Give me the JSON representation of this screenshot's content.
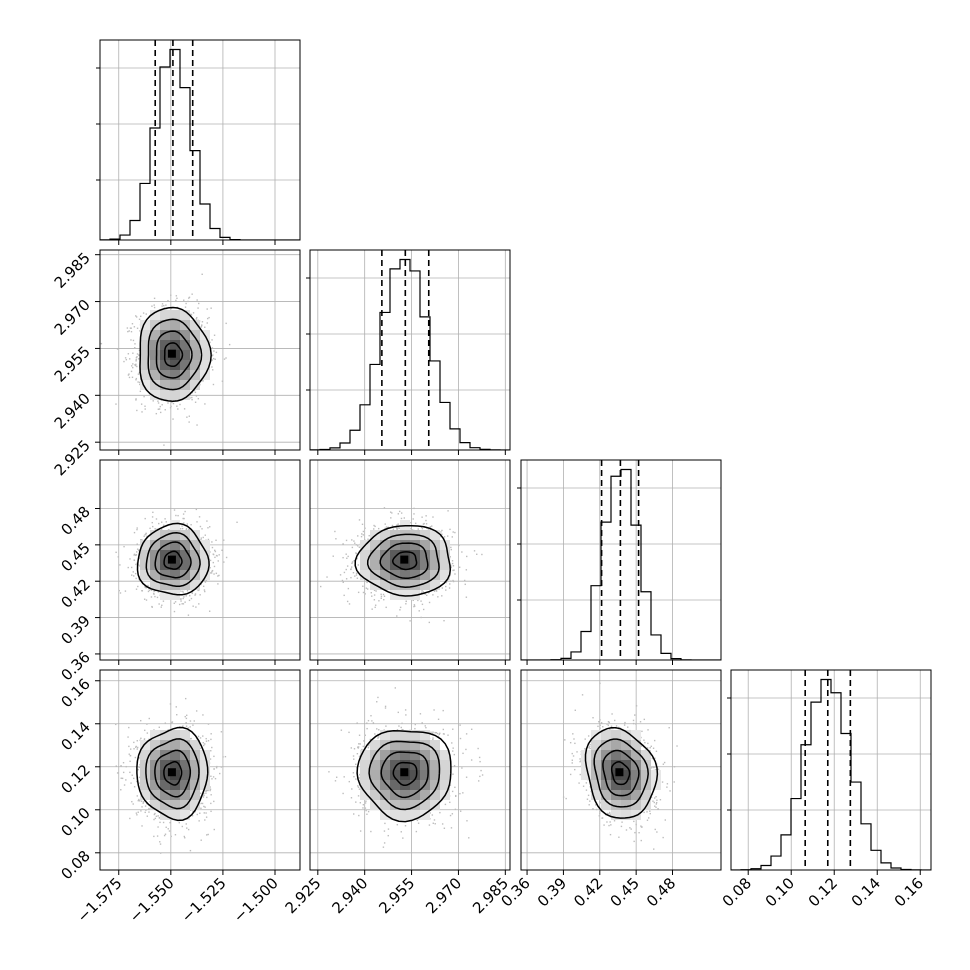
{
  "chart_data": {
    "type": "corner",
    "parameters": [
      {
        "range": [
          -1.584,
          -1.488
        ],
        "ticks": [
          -1.575,
          -1.55,
          -1.525,
          -1.5
        ],
        "tick_labels": [
          "−1.575",
          "−1.550",
          "−1.525",
          "−1.500"
        ],
        "mean": -1.549,
        "sd": 0.0085,
        "quantiles": [
          -1.5575,
          -1.549,
          -1.5395
        ]
      },
      {
        "range": [
          2.9225,
          2.9865
        ],
        "ticks": [
          2.925,
          2.94,
          2.955,
          2.97,
          2.985
        ],
        "tick_labels": [
          "2.925",
          "2.940",
          "2.955",
          "2.970",
          "2.985"
        ],
        "mean": 2.953,
        "sd": 0.0075,
        "quantiles": [
          2.9455,
          2.953,
          2.9605
        ]
      },
      {
        "range": [
          0.355,
          0.52
        ],
        "ticks": [
          0.36,
          0.39,
          0.42,
          0.45,
          0.48
        ],
        "tick_labels": [
          "0.36",
          "0.39",
          "0.42",
          "0.45",
          "0.48"
        ],
        "mean": 0.437,
        "sd": 0.0145,
        "quantiles": [
          0.4215,
          0.437,
          0.452
        ]
      },
      {
        "range": [
          0.072,
          0.165
        ],
        "ticks": [
          0.08,
          0.1,
          0.12,
          0.14,
          0.16
        ],
        "tick_labels": [
          "0.08",
          "0.10",
          "0.12",
          "0.14",
          "0.16"
        ],
        "mean": 0.117,
        "sd": 0.0105,
        "quantiles": [
          0.1065,
          0.117,
          0.1275
        ]
      }
    ],
    "correlations": [
      [
        1,
        0,
        0,
        0
      ],
      [
        0,
        1,
        0,
        0
      ],
      [
        0,
        0,
        1,
        -0.15
      ],
      [
        0,
        0,
        -0.15,
        1
      ]
    ],
    "histogram_bins": 20,
    "contour_levels_sigma": [
      0.5,
      1.0,
      1.5,
      2.0
    ],
    "grid": true,
    "colors": {
      "line": "#000000",
      "points": "#bdbdbd",
      "grid": "#b0b0b0"
    }
  }
}
